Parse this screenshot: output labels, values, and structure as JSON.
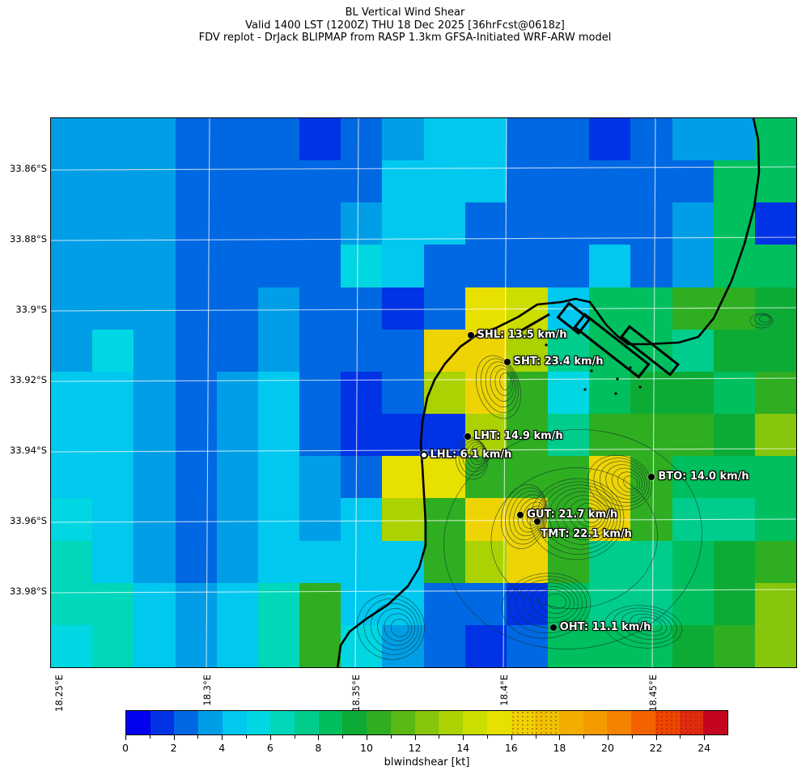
{
  "header": {
    "line1": "BL Vertical Wind Shear",
    "line2": "Valid 1400 LST (1200Z) THU 18 Dec 2025 [36hrFcst@0618z]",
    "line3": "FDV replot - DrJack BLIPMAP from RASP 1.3km GFSA-Initiated WRF-ARW model"
  },
  "chart_data": {
    "type": "heatmap",
    "title": "BL Vertical Wind Shear",
    "parameter": "blwindshear",
    "units": "kt",
    "colorbar_label": "blwindshear [kt]",
    "lon_extent_deg_e": [
      18.246,
      18.498
    ],
    "lat_extent_deg_s": [
      34.0,
      33.845
    ],
    "x_ticks": [
      {
        "label": "18.25°E",
        "f": 0.0141
      },
      {
        "label": "18.3°E",
        "f": 0.2124
      },
      {
        "label": "18.35°E",
        "f": 0.4117
      },
      {
        "label": "18.4°E",
        "f": 0.61
      },
      {
        "label": "18.45°E",
        "f": 0.8093
      }
    ],
    "y_ticks": [
      {
        "label": "33.86°S",
        "f": 0.0941
      },
      {
        "label": "33.88°S",
        "f": 0.2221
      },
      {
        "label": "33.9°S",
        "f": 0.35
      },
      {
        "label": "33.92°S",
        "f": 0.4779
      },
      {
        "label": "33.94°S",
        "f": 0.6059
      },
      {
        "label": "33.96°S",
        "f": 0.7338
      },
      {
        "label": "33.98°S",
        "f": 0.8618
      }
    ],
    "colorbar": {
      "min": 0,
      "max": 25,
      "major_ticks": [
        0,
        2,
        4,
        6,
        8,
        10,
        12,
        14,
        16,
        18,
        20,
        22,
        24
      ],
      "stippled_segments": [
        16,
        17,
        22,
        23
      ],
      "colors": [
        "#0202ee",
        "#0033e6",
        "#0068e2",
        "#009ee6",
        "#00c8ef",
        "#00d7e2",
        "#00d7bb",
        "#00cd8d",
        "#00bf5e",
        "#0cab36",
        "#2fae22",
        "#58b814",
        "#86c60c",
        "#abd303",
        "#ccdd00",
        "#e7e000",
        "#eed404",
        "#f0c202",
        "#f2ae00",
        "#f49b00",
        "#f48300",
        "#f26300",
        "#ee4500",
        "#e22b10",
        "#c3051f"
      ]
    },
    "grid_values_kt": [
      [
        3,
        3,
        3,
        2,
        2,
        2,
        1,
        2,
        3,
        4,
        4,
        2,
        2,
        1,
        2,
        3,
        3,
        8
      ],
      [
        3,
        3,
        3,
        2,
        2,
        2,
        2,
        2,
        4,
        4,
        4,
        2,
        2,
        2,
        2,
        2,
        8,
        8
      ],
      [
        3,
        3,
        3,
        2,
        2,
        2,
        2,
        3,
        4,
        4,
        2,
        2,
        2,
        2,
        2,
        3,
        8,
        1
      ],
      [
        3,
        3,
        3,
        2,
        2,
        2,
        2,
        5,
        4,
        2,
        2,
        2,
        2,
        4,
        2,
        3,
        8,
        8
      ],
      [
        3,
        3,
        3,
        2,
        2,
        3,
        2,
        2,
        1,
        2,
        15,
        14,
        4,
        8,
        8,
        10,
        10,
        9
      ],
      [
        3,
        5,
        3,
        2,
        2,
        3,
        2,
        2,
        2,
        16,
        16,
        13,
        7,
        8,
        8,
        7,
        9,
        9
      ],
      [
        4,
        4,
        3,
        2,
        3,
        4,
        2,
        1,
        2,
        13,
        16,
        10,
        5,
        8,
        9,
        9,
        8,
        10
      ],
      [
        4,
        4,
        3,
        2,
        3,
        4,
        2,
        1,
        1,
        1,
        13,
        10,
        7,
        10,
        10,
        10,
        9,
        12
      ],
      [
        4,
        4,
        3,
        2,
        3,
        4,
        3,
        2,
        15,
        15,
        10,
        10,
        10,
        16,
        10,
        8,
        8,
        8
      ],
      [
        5,
        4,
        3,
        2,
        3,
        4,
        3,
        4,
        13,
        10,
        16,
        16,
        10,
        16,
        10,
        7,
        7,
        8
      ],
      [
        6,
        4,
        3,
        2,
        3,
        4,
        4,
        4,
        4,
        10,
        13,
        16,
        10,
        7,
        7,
        8,
        9,
        10
      ],
      [
        6,
        6,
        4,
        3,
        4,
        6,
        10,
        4,
        4,
        2,
        2,
        1,
        8,
        7,
        7,
        8,
        9,
        12
      ],
      [
        5,
        6,
        4,
        3,
        4,
        6,
        10,
        5,
        3,
        2,
        1,
        2,
        8,
        8,
        8,
        9,
        10,
        12
      ]
    ],
    "stations": [
      {
        "id": "SHL",
        "label": "SHL: 13.5 km/h",
        "value_kmh": 13.5,
        "fx": 0.563,
        "fy": 0.396,
        "marker": "filled"
      },
      {
        "id": "SHT",
        "label": "SHT: 23.4 km/h",
        "value_kmh": 23.4,
        "fx": 0.612,
        "fy": 0.444,
        "marker": "filled"
      },
      {
        "id": "LHT",
        "label": "LHT: 14.9 km/h",
        "value_kmh": 14.9,
        "fx": 0.559,
        "fy": 0.579,
        "marker": "filled"
      },
      {
        "id": "LHL",
        "label": "LHL: 6.1 km/h",
        "value_kmh": 6.1,
        "fx": 0.5,
        "fy": 0.613,
        "marker": "open"
      },
      {
        "id": "BTO",
        "label": "BTO: 14.0 km/h",
        "value_kmh": 14.0,
        "fx": 0.806,
        "fy": 0.654,
        "marker": "filled"
      },
      {
        "id": "GUT",
        "label": "GUT: 21.7 km/h",
        "value_kmh": 21.7,
        "fx": 0.63,
        "fy": 0.722,
        "marker": "filled"
      },
      {
        "id": "TMT",
        "label": "TMT: 22.1 km/h",
        "value_kmh": 22.1,
        "fx": 0.653,
        "fy": 0.734,
        "marker": "filled",
        "label_below": true
      },
      {
        "id": "OHT",
        "label": "OHT: 11.1 km/h",
        "value_kmh": 11.1,
        "fx": 0.674,
        "fy": 0.928,
        "marker": "filled"
      }
    ]
  }
}
